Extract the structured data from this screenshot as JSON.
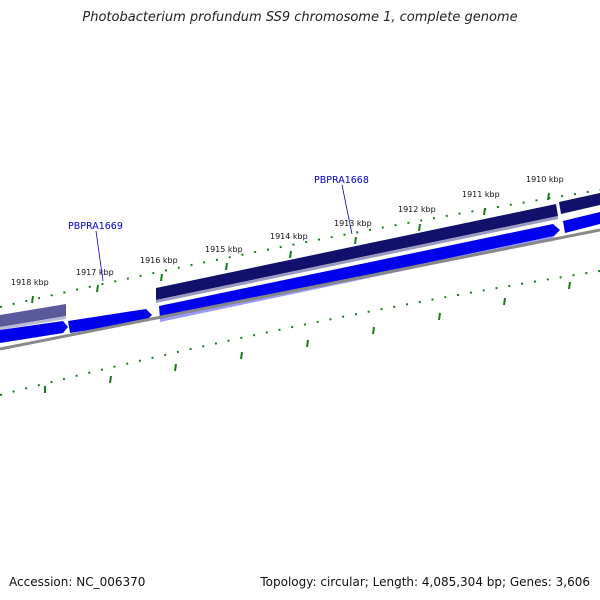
{
  "title": "Photobacterium profundum SS9 chromosome 1, complete genome",
  "accession": "Accession: NC_006370",
  "topology": "Topology: circular; Length: 4,085,304 bp; Genes: 3,606",
  "gene_labels": [
    "PBPRA1669",
    "PBPRA1668"
  ],
  "ticks": [
    "1918 kbp",
    "1917 kbp",
    "1916 kbp",
    "1915 kbp",
    "1914 kbp",
    "1913 kbp",
    "1912 kbp",
    "1911 kbp",
    "1910 kbp"
  ],
  "colors": {
    "forward_gene": "#0000ee",
    "reverse_gene": "#11116b",
    "reverse_gene_faded": "#5a5a9a",
    "backbone": "#888888",
    "tick": "#1a7a1a",
    "label": "#0000cc"
  }
}
